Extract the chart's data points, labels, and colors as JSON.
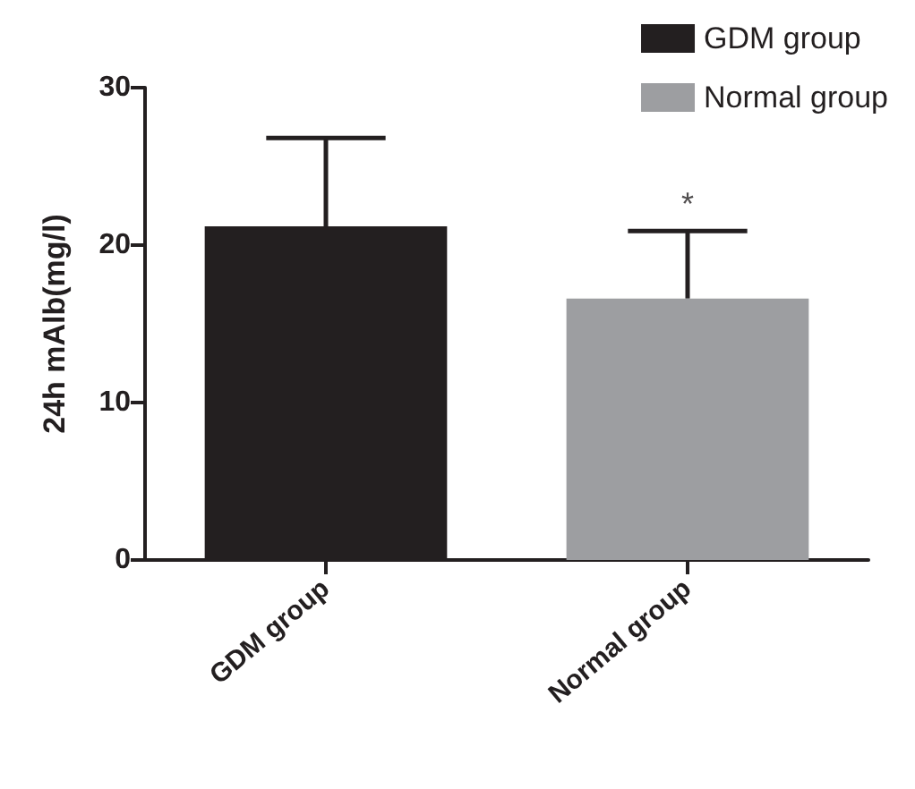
{
  "chart_data": {
    "type": "bar",
    "ylabel": "24h mAlb(mg/l)",
    "categories": [
      "GDM group",
      "Normal group"
    ],
    "stacked": true,
    "series": [
      {
        "name": "GDM group",
        "color": "#231f20",
        "values": [
          21.2,
          null
        ],
        "errors": [
          [
            21.2,
            26.8
          ],
          null
        ]
      },
      {
        "name": "Normal group",
        "color": "#9d9ea1",
        "values": [
          null,
          16.6
        ],
        "errors": [
          null,
          [
            16.6,
            20.9
          ]
        ]
      }
    ],
    "ylim": [
      0,
      30
    ],
    "yticks": [
      0,
      10,
      20,
      30
    ],
    "grid": false,
    "legend": "top right",
    "annotations": [
      {
        "text": "*",
        "x": "Normal group",
        "y": 20.9
      }
    ]
  }
}
